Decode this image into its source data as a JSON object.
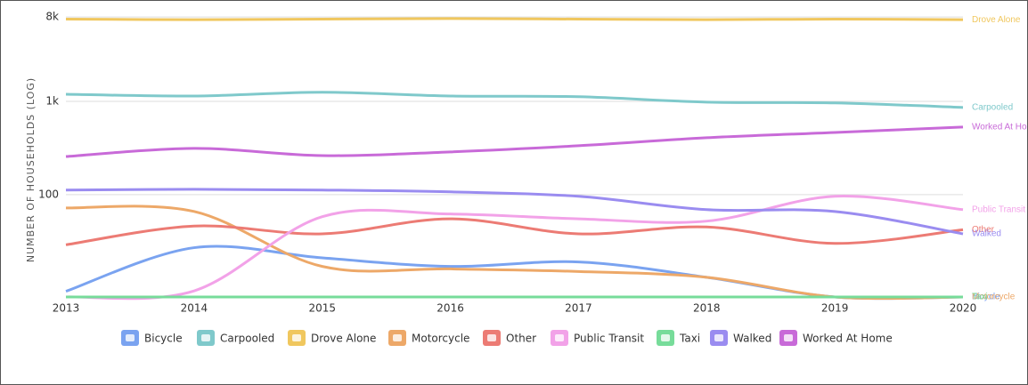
{
  "chart_data": {
    "type": "line",
    "y_label": "NUMBER OF HOUSEHOLDS (LOG)",
    "log_scale": true,
    "grid": true,
    "x": [
      "2013",
      "2014",
      "2015",
      "2016",
      "2017",
      "2018",
      "2019",
      "2020"
    ],
    "ylim": [
      8,
      10000
    ],
    "yticks": [
      100,
      {
        "value": 1000,
        "label": "1k"
      },
      {
        "value": 8000,
        "label": "8k"
      }
    ],
    "series": [
      {
        "name": "Bicycle",
        "color": "#7aa3f0",
        "values": [
          9.2,
          27,
          21,
          17,
          19,
          13,
          8,
          8
        ]
      },
      {
        "name": "Carpooled",
        "color": "#7fc9cb",
        "values": [
          1190,
          1140,
          1250,
          1140,
          1120,
          980,
          960,
          860
        ]
      },
      {
        "name": "Drove Alone",
        "color": "#f0c75e",
        "values": [
          7600,
          7500,
          7600,
          7700,
          7600,
          7500,
          7600,
          7500
        ]
      },
      {
        "name": "Motorcycle",
        "color": "#eda868",
        "values": [
          72,
          66,
          17,
          16,
          15,
          13,
          8,
          8
        ]
      },
      {
        "name": "Other",
        "color": "#ec7b74",
        "values": [
          29,
          46,
          38,
          55,
          38,
          45,
          30,
          42
        ]
      },
      {
        "name": "Public Transit",
        "color": "#f2a2e8",
        "values": [
          8,
          9.3,
          58,
          62,
          55,
          52,
          96,
          69
        ]
      },
      {
        "name": "Taxi",
        "color": "#77dc9a",
        "values": [
          8,
          8,
          8,
          8,
          8,
          8,
          8,
          8
        ]
      },
      {
        "name": "Walked",
        "color": "#9a8cf0",
        "values": [
          112,
          114,
          112,
          107,
          96,
          69,
          66,
          38
        ]
      },
      {
        "name": "Worked At Home",
        "color": "#c86ad8",
        "values": [
          256,
          313,
          262,
          287,
          334,
          407,
          464,
          530
        ]
      }
    ]
  }
}
